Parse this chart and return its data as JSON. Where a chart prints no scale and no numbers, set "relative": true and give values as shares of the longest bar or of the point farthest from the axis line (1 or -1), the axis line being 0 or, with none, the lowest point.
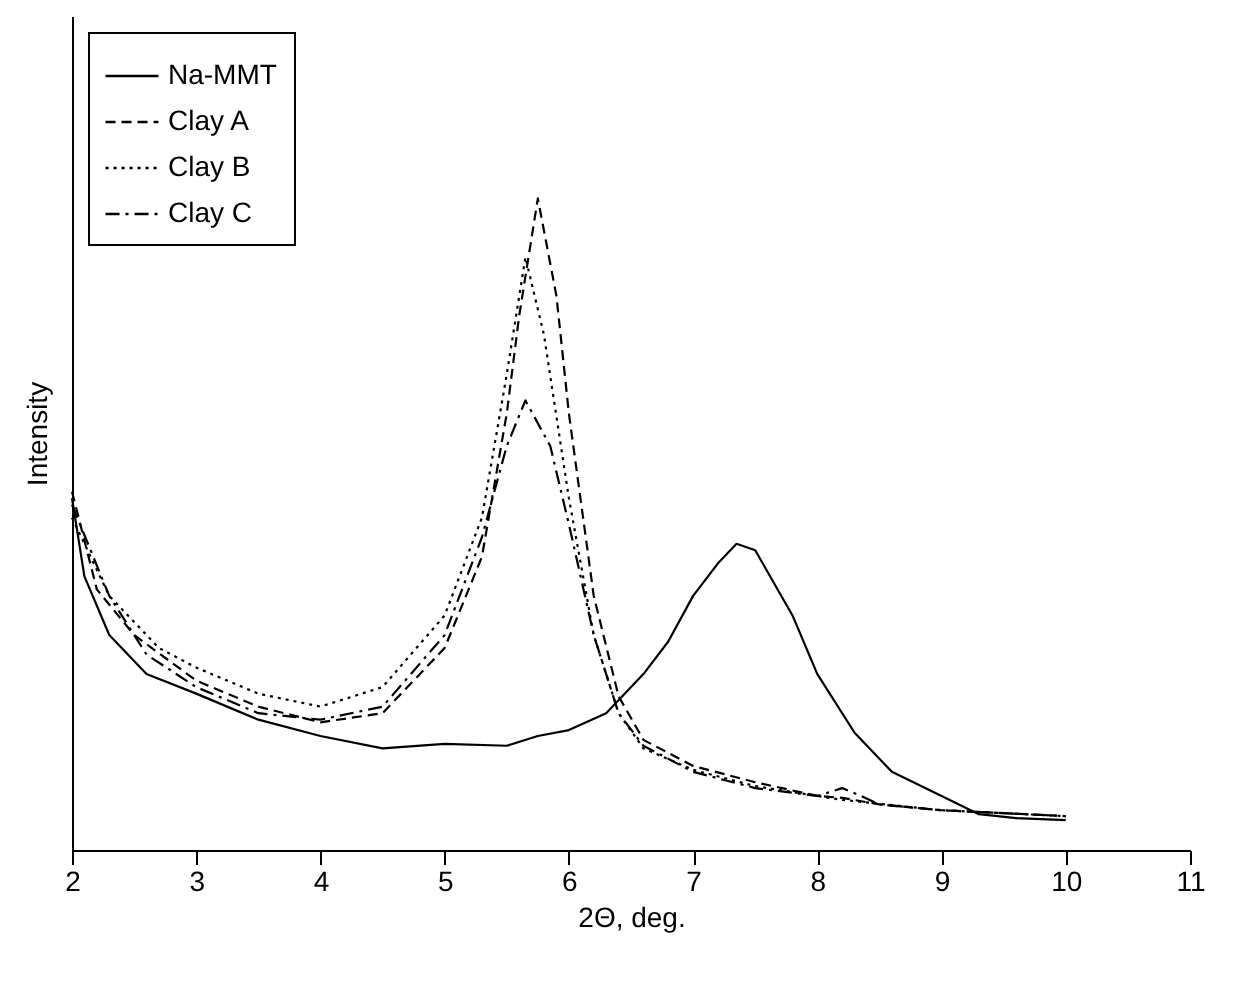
{
  "chart_data": {
    "type": "line",
    "xlabel": "2Θ, deg.",
    "ylabel": "Intensity",
    "relative": true,
    "xlim": [
      2,
      11
    ],
    "xticks": [
      2,
      3,
      4,
      5,
      6,
      7,
      8,
      9,
      10,
      11
    ],
    "legend": "top left",
    "grid": false,
    "tick_labels": "x",
    "series": [
      {
        "name": "Na-MMT",
        "color": "#000000",
        "line_style": "solid",
        "x": [
          2,
          2.1,
          2.3,
          2.6,
          3,
          3.5,
          4,
          4.5,
          5,
          5.5,
          5.75,
          6,
          6.3,
          6.6,
          6.8,
          7,
          7.2,
          7.35,
          7.5,
          7.8,
          8,
          8.3,
          8.6,
          9,
          9.3,
          9.6,
          10
        ],
        "values": [
          0.54,
          0.42,
          0.33,
          0.27,
          0.24,
          0.2,
          0.175,
          0.156,
          0.163,
          0.16,
          0.175,
          0.184,
          0.21,
          0.27,
          0.32,
          0.39,
          0.44,
          0.47,
          0.46,
          0.36,
          0.27,
          0.18,
          0.12,
          0.083,
          0.055,
          0.049,
          0.046
        ]
      },
      {
        "name": "Clay A",
        "color": "#000000",
        "line_style": "dashed",
        "x": [
          2,
          2.2,
          2.5,
          3,
          3.5,
          4,
          4.5,
          5,
          5.3,
          5.5,
          5.6,
          5.75,
          5.9,
          6,
          6.2,
          6.4,
          6.6,
          7,
          7.5,
          8,
          8.2,
          8.5,
          9,
          10
        ],
        "values": [
          0.55,
          0.4,
          0.33,
          0.26,
          0.22,
          0.196,
          0.21,
          0.31,
          0.45,
          0.67,
          0.82,
          1,
          0.85,
          0.67,
          0.39,
          0.236,
          0.169,
          0.129,
          0.104,
          0.083,
          0.08,
          0.07,
          0.061,
          0.052
        ]
      },
      {
        "name": "Clay B",
        "color": "#000000",
        "line_style": "dotted",
        "x": [
          2,
          2.3,
          2.7,
          3,
          3.5,
          4,
          4.5,
          5,
          5.3,
          5.5,
          5.65,
          5.8,
          6,
          6.2,
          6.4,
          6.6,
          7,
          7.5,
          8,
          8.2,
          9,
          10
        ],
        "values": [
          0.51,
          0.39,
          0.31,
          0.28,
          0.24,
          0.22,
          0.25,
          0.36,
          0.51,
          0.73,
          0.91,
          0.79,
          0.54,
          0.33,
          0.21,
          0.156,
          0.123,
          0.098,
          0.083,
          0.077,
          0.061,
          0.052
        ]
      },
      {
        "name": "Clay C",
        "color": "#000000",
        "line_style": "dashdot",
        "x": [
          2,
          2.3,
          2.6,
          3,
          3.5,
          4,
          4.5,
          5,
          5.3,
          5.5,
          5.65,
          5.85,
          6,
          6.2,
          6.4,
          6.6,
          7,
          7.5,
          8,
          8.2,
          8.35,
          8.5,
          9,
          10
        ],
        "values": [
          0.53,
          0.39,
          0.3,
          0.25,
          0.21,
          0.2,
          0.22,
          0.33,
          0.48,
          0.62,
          0.69,
          0.62,
          0.5,
          0.33,
          0.21,
          0.16,
          0.12,
          0.095,
          0.083,
          0.095,
          0.083,
          0.07,
          0.061,
          0.052
        ]
      }
    ]
  }
}
